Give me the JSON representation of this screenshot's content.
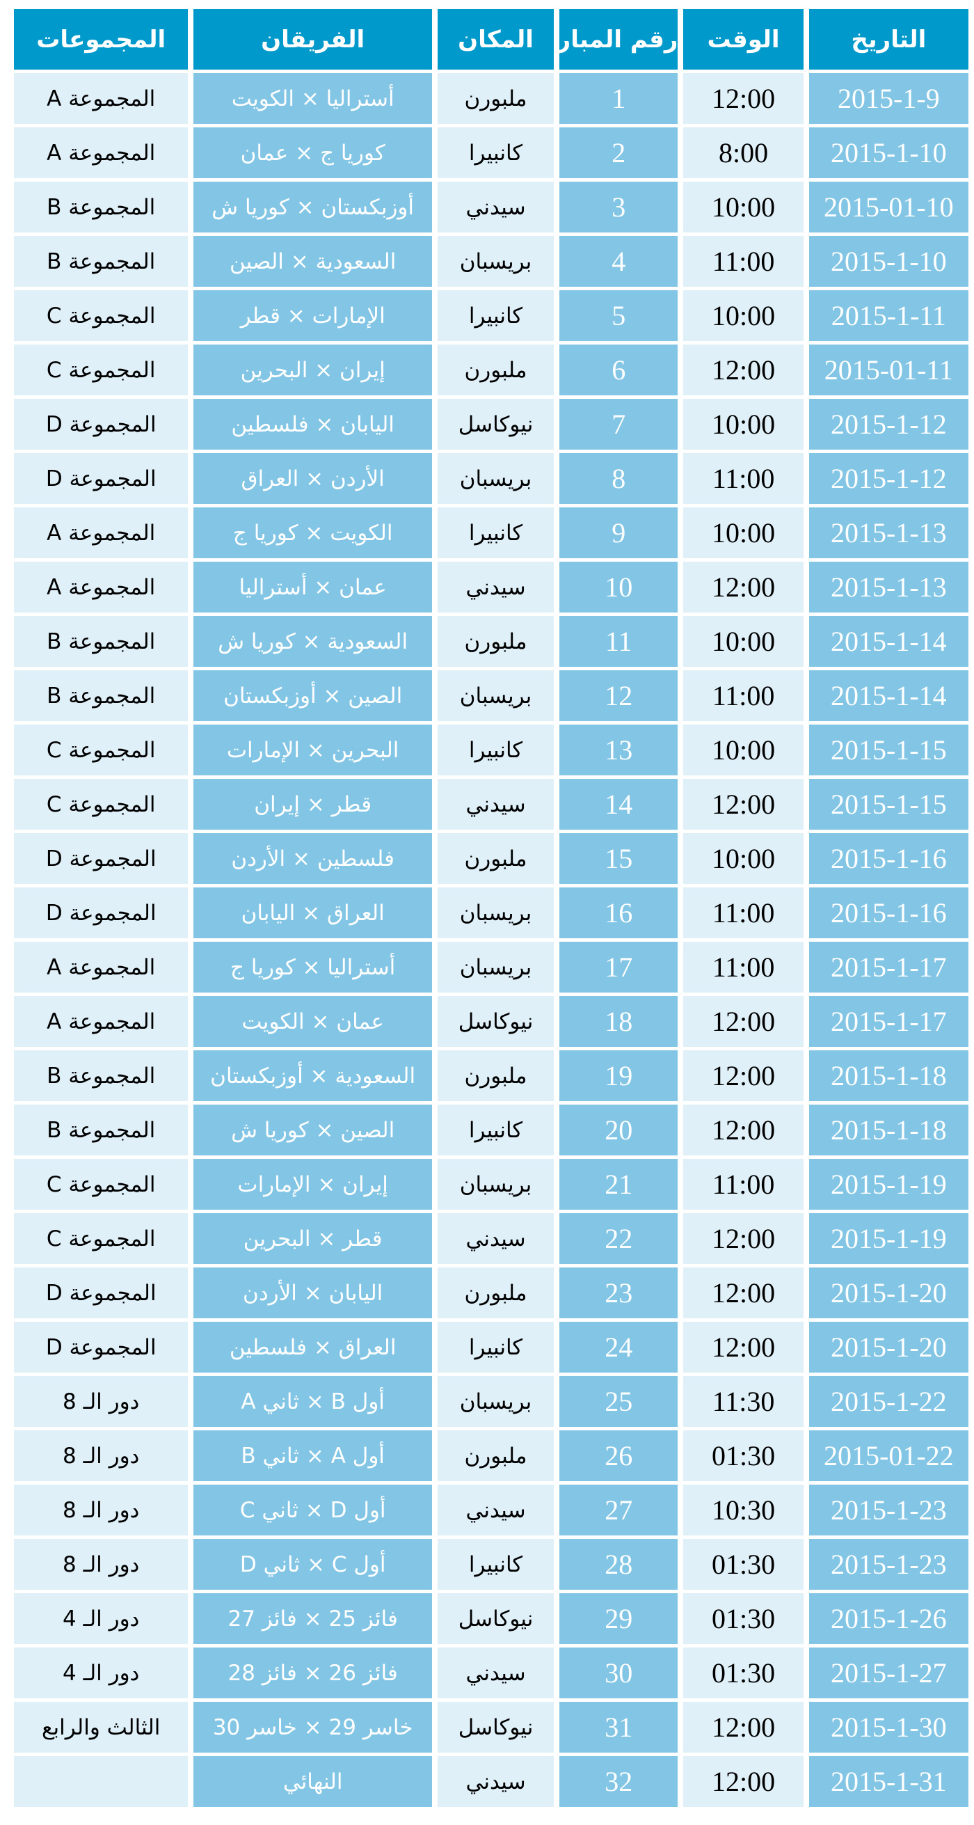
{
  "colors": {
    "header": "#0099cb",
    "light_cell": "#dff0f8",
    "medium_cell": "#82c5e5"
  },
  "headers": {
    "date": "التاريخ",
    "time": "الوقت",
    "match_no": "رقم المباراة",
    "venue": "المكان",
    "teams": "الفريقان",
    "group": "المجموعات"
  },
  "rows": [
    {
      "date": "2015-1-9",
      "time": "12:00",
      "match_no": "1",
      "venue": "ملبورن",
      "teams": "أستراليا × الكويت",
      "group": "المجموعة A"
    },
    {
      "date": "2015-1-10",
      "time": "8:00",
      "match_no": "2",
      "venue": "كانبيرا",
      "teams": "كوريا ج × عمان",
      "group": "المجموعة A"
    },
    {
      "date": "2015-01-10",
      "time": "10:00",
      "match_no": "3",
      "venue": "سيدني",
      "teams": "أوزبكستان × كوريا ش",
      "group": "المجموعة B"
    },
    {
      "date": "2015-1-10",
      "time": "11:00",
      "match_no": "4",
      "venue": "بريسبان",
      "teams": "السعودية × الصين",
      "group": "المجموعة B"
    },
    {
      "date": "2015-1-11",
      "time": "10:00",
      "match_no": "5",
      "venue": "كانبيرا",
      "teams": "الإمارات × قطر",
      "group": "المجموعة C"
    },
    {
      "date": "2015-01-11",
      "time": "12:00",
      "match_no": "6",
      "venue": "ملبورن",
      "teams": "إيران × البحرين",
      "group": "المجموعة C"
    },
    {
      "date": "2015-1-12",
      "time": "10:00",
      "match_no": "7",
      "venue": "نيوكاسل",
      "teams": "اليابان × فلسطين",
      "group": "المجموعة D"
    },
    {
      "date": "2015-1-12",
      "time": "11:00",
      "match_no": "8",
      "venue": "بريسبان",
      "teams": "الأردن × العراق",
      "group": "المجموعة D"
    },
    {
      "date": "2015-1-13",
      "time": "10:00",
      "match_no": "9",
      "venue": "كانبيرا",
      "teams": "الكويت × كوريا ج",
      "group": "المجموعة A"
    },
    {
      "date": "2015-1-13",
      "time": "12:00",
      "match_no": "10",
      "venue": "سيدني",
      "teams": "عمان × أستراليا",
      "group": "المجموعة A"
    },
    {
      "date": "2015-1-14",
      "time": "10:00",
      "match_no": "11",
      "venue": "ملبورن",
      "teams": "السعودية × كوريا ش",
      "group": "المجموعة B"
    },
    {
      "date": "2015-1-14",
      "time": "11:00",
      "match_no": "12",
      "venue": "بريسبان",
      "teams": "الصين × أوزبكستان",
      "group": "المجموعة B"
    },
    {
      "date": "2015-1-15",
      "time": "10:00",
      "match_no": "13",
      "venue": "كانبيرا",
      "teams": "البحرين × الإمارات",
      "group": "المجموعة C"
    },
    {
      "date": "2015-1-15",
      "time": "12:00",
      "match_no": "14",
      "venue": "سيدني",
      "teams": "قطر × إيران",
      "group": "المجموعة C"
    },
    {
      "date": "2015-1-16",
      "time": "10:00",
      "match_no": "15",
      "venue": "ملبورن",
      "teams": "فلسطين × الأردن",
      "group": "المجموعة D"
    },
    {
      "date": "2015-1-16",
      "time": "11:00",
      "match_no": "16",
      "venue": "بريسبان",
      "teams": "العراق × اليابان",
      "group": "المجموعة D"
    },
    {
      "date": "2015-1-17",
      "time": "11:00",
      "match_no": "17",
      "venue": "بريسبان",
      "teams": "أستراليا × كوريا ج",
      "group": "المجموعة A"
    },
    {
      "date": "2015-1-17",
      "time": "12:00",
      "match_no": "18",
      "venue": "نيوكاسل",
      "teams": "عمان × الكويت",
      "group": "المجموعة A"
    },
    {
      "date": "2015-1-18",
      "time": "12:00",
      "match_no": "19",
      "venue": "ملبورن",
      "teams": "السعودية × أوزبكستان",
      "group": "المجموعة B"
    },
    {
      "date": "2015-1-18",
      "time": "12:00",
      "match_no": "20",
      "venue": "كانبيرا",
      "teams": "الصين × كوريا ش",
      "group": "المجموعة B"
    },
    {
      "date": "2015-1-19",
      "time": "11:00",
      "match_no": "21",
      "venue": "بريسبان",
      "teams": "إيران × الإمارات",
      "group": "المجموعة C"
    },
    {
      "date": "2015-1-19",
      "time": "12:00",
      "match_no": "22",
      "venue": "سيدني",
      "teams": "قطر × البحرين",
      "group": "المجموعة C"
    },
    {
      "date": "2015-1-20",
      "time": "12:00",
      "match_no": "23",
      "venue": "ملبورن",
      "teams": "اليابان × الأردن",
      "group": "المجموعة D"
    },
    {
      "date": "2015-1-20",
      "time": "12:00",
      "match_no": "24",
      "venue": "كانبيرا",
      "teams": "العراق × فلسطين",
      "group": "المجموعة D"
    },
    {
      "date": "2015-1-22",
      "time": "11:30",
      "match_no": "25",
      "venue": "بريسبان",
      "teams": "أول B × ثاني A",
      "group": "دور الـ 8"
    },
    {
      "date": "2015-01-22",
      "time": "01:30",
      "match_no": "26",
      "venue": "ملبورن",
      "teams": "أول A × ثاني B",
      "group": "دور الـ 8"
    },
    {
      "date": "2015-1-23",
      "time": "10:30",
      "match_no": "27",
      "venue": "سيدني",
      "teams": "أول D × ثاني C",
      "group": "دور الـ 8"
    },
    {
      "date": "2015-1-23",
      "time": "01:30",
      "match_no": "28",
      "venue": "كانبيرا",
      "teams": "أول C × ثاني D",
      "group": "دور الـ 8"
    },
    {
      "date": "2015-1-26",
      "time": "01:30",
      "match_no": "29",
      "venue": "نيوكاسل",
      "teams": "فائز 25 × فائز 27",
      "group": "دور الـ 4"
    },
    {
      "date": "2015-1-27",
      "time": "01:30",
      "match_no": "30",
      "venue": "سيدني",
      "teams": "فائز 26 × فائز 28",
      "group": "دور الـ 4"
    },
    {
      "date": "2015-1-30",
      "time": "12:00",
      "match_no": "31",
      "venue": "نيوكاسل",
      "teams": "خاسر 29 × خاسر 30",
      "group": "الثالث والرابع"
    },
    {
      "date": "2015-1-31",
      "time": "12:00",
      "match_no": "32",
      "venue": "سيدني",
      "teams": "النهائي",
      "group": ""
    }
  ]
}
